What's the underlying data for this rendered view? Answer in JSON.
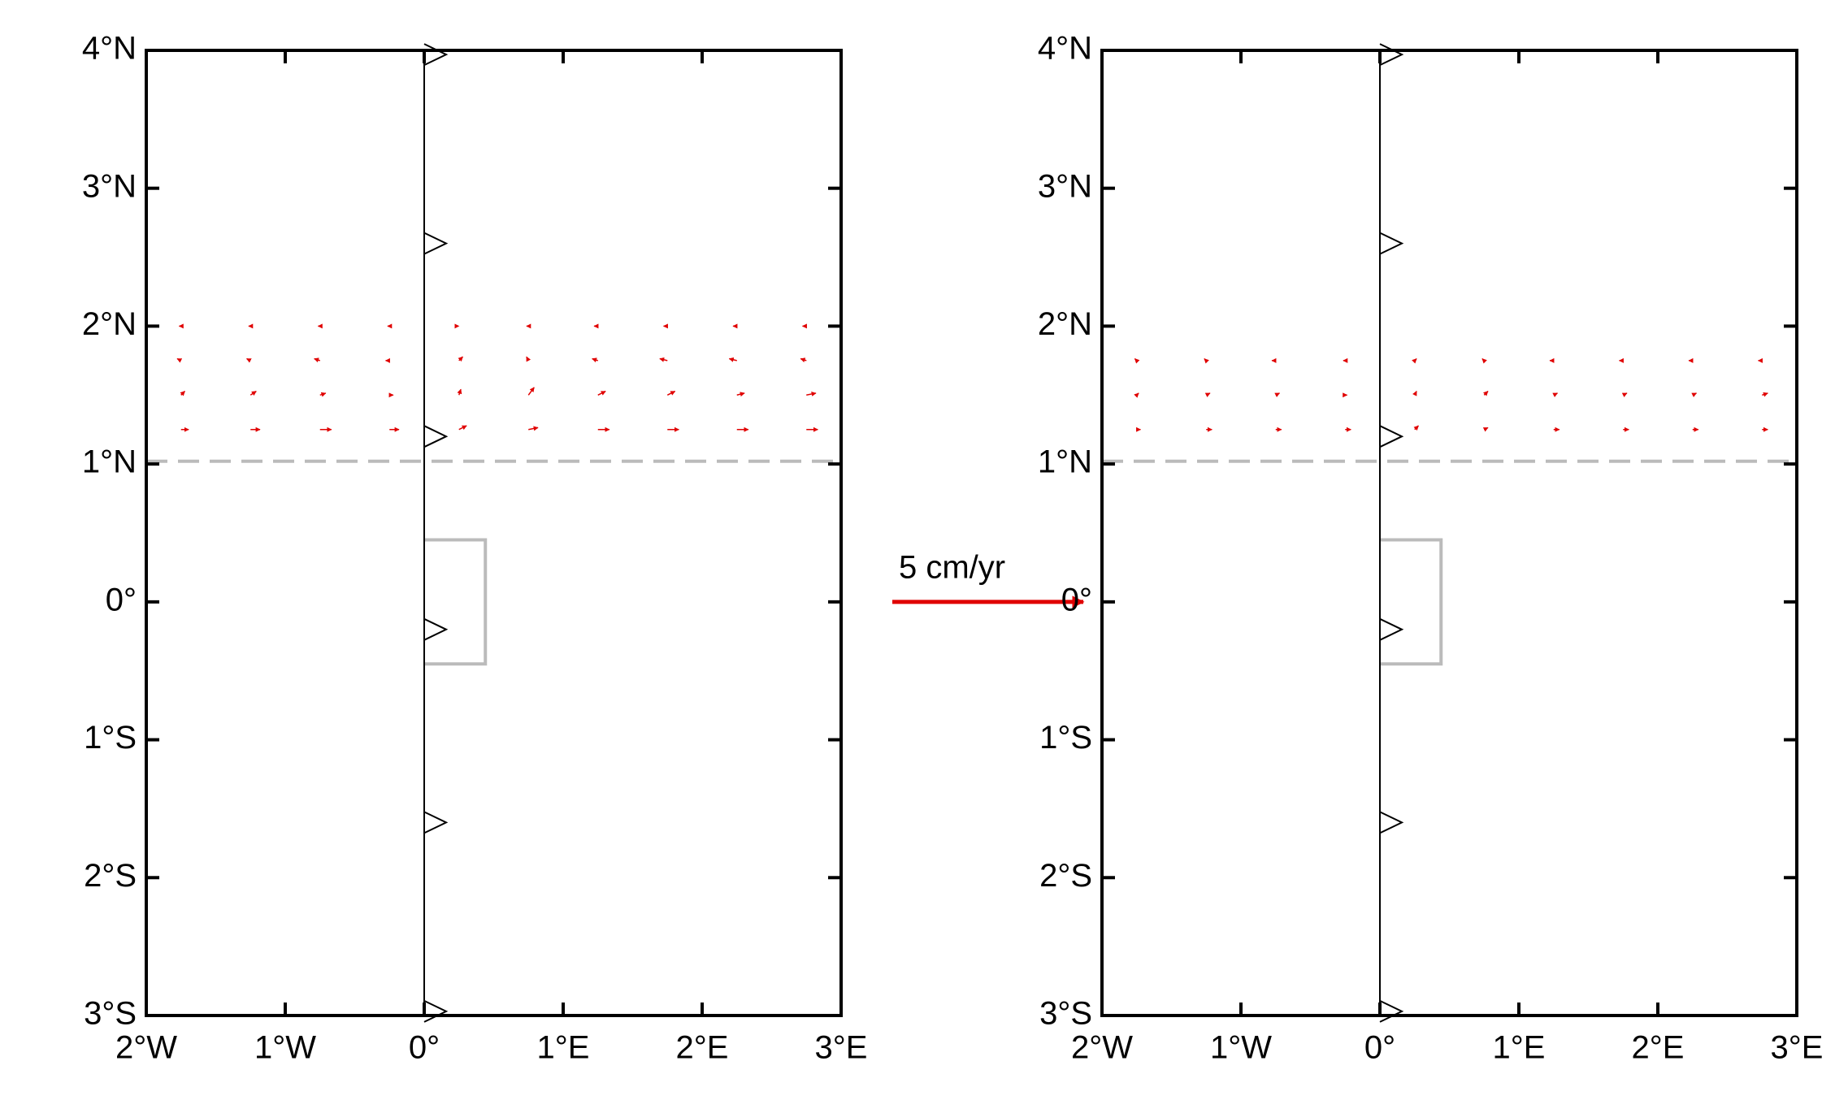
{
  "chart_data": [
    {
      "type": "quiver",
      "color": "#e00000",
      "xlim": [
        -2,
        3
      ],
      "ylim": [
        -3,
        4
      ],
      "xticks": [
        {
          "value": -2,
          "label": "2°W"
        },
        {
          "value": -1,
          "label": "1°W"
        },
        {
          "value": 0,
          "label": "0°"
        },
        {
          "value": 1,
          "label": "1°E"
        },
        {
          "value": 2,
          "label": "2°E"
        },
        {
          "value": 3,
          "label": "3°E"
        }
      ],
      "yticks": [
        {
          "value": -3,
          "label": "3°S"
        },
        {
          "value": -2,
          "label": "2°S"
        },
        {
          "value": -1,
          "label": "1°S"
        },
        {
          "value": 0,
          "label": "0°"
        },
        {
          "value": 1,
          "label": "1°N"
        },
        {
          "value": 2,
          "label": "2°N"
        },
        {
          "value": 3,
          "label": "3°N"
        },
        {
          "value": 4,
          "label": "4°N"
        }
      ],
      "reference": {
        "label": "5 cm/yr",
        "length": 5
      },
      "dashed_lat": 1.02,
      "box": {
        "xlim": [
          0,
          0.44
        ],
        "ylim": [
          -0.45,
          0.45
        ]
      },
      "markers": {
        "x": [
          0,
          0,
          0,
          0,
          0,
          0
        ],
        "y": [
          3.97,
          2.6,
          1.2,
          -0.2,
          -1.6,
          -2.97
        ]
      },
      "vectors": {
        "x": [
          -1.75,
          -1.25,
          -0.75,
          -0.25,
          0.25,
          0.75,
          1.25,
          1.75,
          2.25,
          2.75,
          -1.75,
          -1.25,
          -0.75,
          -0.25,
          0.25,
          0.75,
          1.25,
          1.75,
          2.25,
          2.75,
          -1.75,
          -1.25,
          -0.75,
          -0.25,
          0.25,
          0.75,
          1.25,
          1.75,
          2.25,
          2.75,
          -1.75,
          -1.25,
          -0.75,
          -0.25,
          0.25,
          0.75,
          1.25,
          1.75,
          2.25,
          2.75
        ],
        "y": [
          1.25,
          1.25,
          1.25,
          1.25,
          1.25,
          1.25,
          1.25,
          1.25,
          1.25,
          1.25,
          1.5,
          1.5,
          1.5,
          1.5,
          1.5,
          1.5,
          1.5,
          1.5,
          1.5,
          1.5,
          1.75,
          1.75,
          1.75,
          1.75,
          1.75,
          1.75,
          1.75,
          1.75,
          1.75,
          1.75,
          2,
          2,
          2,
          2,
          2,
          2,
          2,
          2,
          2,
          2
        ],
        "u": [
          0.2,
          0.25,
          0.3,
          0.25,
          0.2,
          0.25,
          0.3,
          0.3,
          0.3,
          0.3,
          0.1,
          0.15,
          0.15,
          0.1,
          0.05,
          0.15,
          0.2,
          0.2,
          0.2,
          0.25,
          -0.1,
          -0.1,
          -0.15,
          -0.1,
          0.1,
          -0.05,
          -0.15,
          -0.2,
          -0.2,
          -0.15,
          -0.05,
          -0.05,
          -0.05,
          -0.05,
          0,
          -0.05,
          -0.1,
          -0.1,
          -0.1,
          -0.1
        ],
        "v": [
          0,
          0,
          0,
          0,
          0.1,
          0.05,
          0,
          0,
          0,
          0,
          0.1,
          0.1,
          0.05,
          0,
          0.15,
          0.2,
          0.1,
          0.1,
          0.05,
          0.05,
          0.05,
          0.05,
          0.05,
          0,
          0.1,
          0.1,
          0.05,
          0.05,
          0.05,
          0.05,
          0,
          0,
          0,
          0,
          0,
          0,
          0,
          0,
          0,
          0
        ]
      }
    },
    {
      "type": "quiver",
      "color": "#e00000",
      "xlim": [
        -2,
        3
      ],
      "ylim": [
        -3,
        4
      ],
      "xticks": [
        {
          "value": -2,
          "label": "2°W"
        },
        {
          "value": -1,
          "label": "1°W"
        },
        {
          "value": 0,
          "label": "0°"
        },
        {
          "value": 1,
          "label": "1°E"
        },
        {
          "value": 2,
          "label": "2°E"
        },
        {
          "value": 3,
          "label": "3°E"
        }
      ],
      "yticks": [
        {
          "value": -3,
          "label": "3°S"
        },
        {
          "value": -2,
          "label": "2°S"
        },
        {
          "value": -1,
          "label": "1°S"
        },
        {
          "value": 0,
          "label": "0°"
        },
        {
          "value": 1,
          "label": "1°N"
        },
        {
          "value": 2,
          "label": "2°N"
        },
        {
          "value": 3,
          "label": "3°N"
        },
        {
          "value": 4,
          "label": "4°N"
        }
      ],
      "dashed_lat": 1.02,
      "box": {
        "xlim": [
          0,
          0.44
        ],
        "ylim": [
          -0.45,
          0.45
        ]
      },
      "markers": {
        "x": [
          0,
          0,
          0,
          0,
          0,
          0
        ],
        "y": [
          3.97,
          2.6,
          1.2,
          -0.2,
          -1.6,
          -2.97
        ]
      },
      "vectors": {
        "x": [
          -1.75,
          -1.25,
          -0.75,
          -0.25,
          0.25,
          0.75,
          1.25,
          1.75,
          2.25,
          2.75,
          -1.75,
          -1.25,
          -0.75,
          -0.25,
          0.25,
          0.75,
          1.25,
          1.75,
          2.25,
          2.75,
          -1.75,
          -1.25,
          -0.75,
          -0.25,
          0.25,
          0.75,
          1.25,
          1.75,
          2.25,
          2.75
        ],
        "y": [
          1.25,
          1.25,
          1.25,
          1.25,
          1.25,
          1.25,
          1.25,
          1.25,
          1.25,
          1.25,
          1.5,
          1.5,
          1.5,
          1.5,
          1.5,
          1.5,
          1.5,
          1.5,
          1.5,
          1.5,
          1.75,
          1.75,
          1.75,
          1.75,
          1.75,
          1.75,
          1.75,
          1.75,
          1.75,
          1.75
        ],
        "u": [
          0.1,
          0.15,
          0.15,
          0.15,
          0.1,
          0.1,
          0.15,
          0.15,
          0.15,
          0.15,
          0.05,
          0.1,
          0.1,
          0.05,
          0.05,
          0.1,
          0.1,
          0.1,
          0.1,
          0.15,
          -0.05,
          -0.05,
          -0.1,
          -0.05,
          0.05,
          -0.05,
          -0.1,
          -0.1,
          -0.1,
          -0.1
        ],
        "v": [
          0,
          0,
          0,
          0,
          0.1,
          0.05,
          0,
          0,
          0,
          0,
          0.05,
          0.05,
          0.05,
          0,
          0.1,
          0.1,
          0.05,
          0.05,
          0.05,
          0.05,
          0.05,
          0.05,
          0,
          0,
          0.05,
          0.05,
          0,
          0,
          0,
          0
        ]
      }
    }
  ]
}
